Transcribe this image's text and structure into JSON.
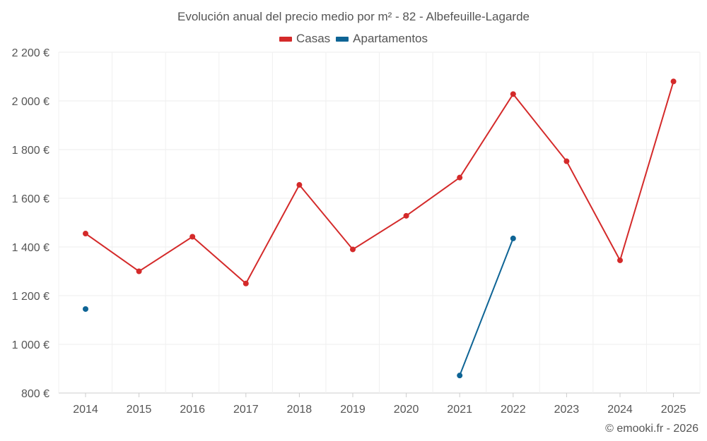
{
  "chart_data": {
    "type": "line",
    "title": "Evolución anual del precio medio por m² - 82 - Albefeuille-Lagarde",
    "categories": [
      "2014",
      "2015",
      "2016",
      "2017",
      "2018",
      "2019",
      "2020",
      "2021",
      "2022",
      "2023",
      "2024",
      "2025"
    ],
    "y_ticks": [
      800,
      1000,
      1200,
      1400,
      1600,
      1800,
      2000,
      2200
    ],
    "y_tick_labels": [
      "800 €",
      "1 000 €",
      "1 200 €",
      "1 400 €",
      "1 600 €",
      "1 800 €",
      "2 000 €",
      "2 200 €"
    ],
    "ylim": [
      800,
      2200
    ],
    "grid": true,
    "legend_position": "top-center",
    "series": [
      {
        "name": "Casas",
        "color": "#d42a2a",
        "values": [
          1455,
          1300,
          1442,
          1250,
          1655,
          1390,
          1528,
          1685,
          2028,
          1752,
          1345,
          2080
        ]
      },
      {
        "name": "Apartamentos",
        "color": "#0e6495",
        "values": [
          1145,
          null,
          null,
          null,
          null,
          null,
          null,
          872,
          1435,
          null,
          null,
          null
        ]
      }
    ]
  },
  "footer": {
    "credit": "© emooki.fr - 2026"
  }
}
